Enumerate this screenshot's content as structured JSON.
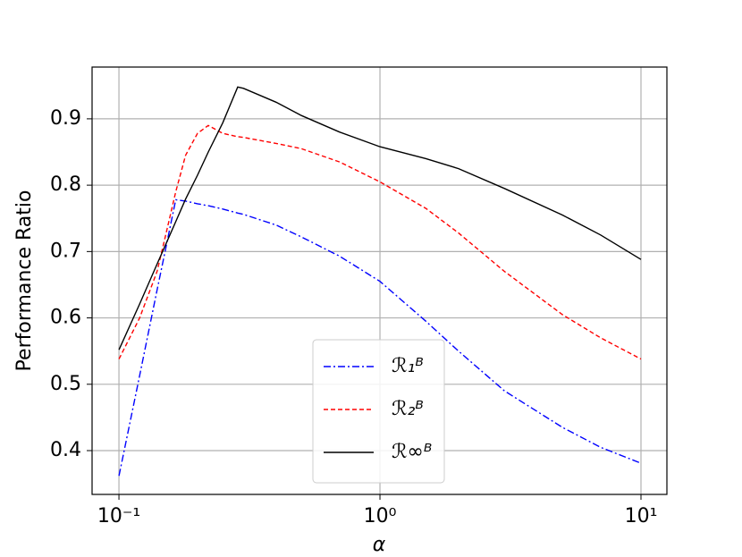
{
  "chart_data": {
    "type": "line",
    "xlabel": "α",
    "ylabel": "Performance Ratio",
    "x": [
      0.1,
      0.12,
      0.14,
      0.15,
      0.165,
      0.18,
      0.2,
      0.22,
      0.25,
      0.285,
      0.3,
      0.4,
      0.5,
      0.7,
      1,
      1.5,
      2,
      3,
      5,
      7,
      10
    ],
    "series": [
      {
        "name": "ℛ₁ᴮ",
        "color": "#0000ff",
        "dash": "8,3,2,3",
        "values": [
          0.362,
          0.513,
          0.642,
          0.699,
          0.778,
          0.776,
          0.772,
          0.769,
          0.764,
          0.758,
          0.756,
          0.74,
          0.722,
          0.693,
          0.655,
          0.595,
          0.55,
          0.49,
          0.435,
          0.405,
          0.381
        ]
      },
      {
        "name": "ℛ₂ᴮ",
        "color": "#ff0000",
        "dash": "5,3",
        "values": [
          0.538,
          0.6,
          0.67,
          0.72,
          0.79,
          0.845,
          0.878,
          0.89,
          0.878,
          0.873,
          0.872,
          0.863,
          0.855,
          0.835,
          0.805,
          0.765,
          0.728,
          0.67,
          0.605,
          0.57,
          0.538
        ]
      },
      {
        "name": "ℛ∞ᴮ",
        "color": "#000000",
        "dash": "none",
        "values": [
          0.552,
          0.621,
          0.681,
          0.708,
          0.745,
          0.779,
          0.815,
          0.85,
          0.894,
          0.948,
          0.946,
          0.925,
          0.905,
          0.88,
          0.858,
          0.84,
          0.825,
          0.795,
          0.755,
          0.725,
          0.688
        ]
      }
    ],
    "xscale": "log",
    "xlim": [
      0.0789,
      12.57
    ],
    "xticks": [
      {
        "value": 0.1,
        "label": "10⁻¹"
      },
      {
        "value": 1,
        "label": "10⁰"
      },
      {
        "value": 10,
        "label": "10¹"
      }
    ],
    "ylim": [
      0.334,
      0.978
    ],
    "yticks": [
      0.4,
      0.5,
      0.6,
      0.7,
      0.8,
      0.9
    ],
    "grid": true,
    "legend": "lower center"
  }
}
